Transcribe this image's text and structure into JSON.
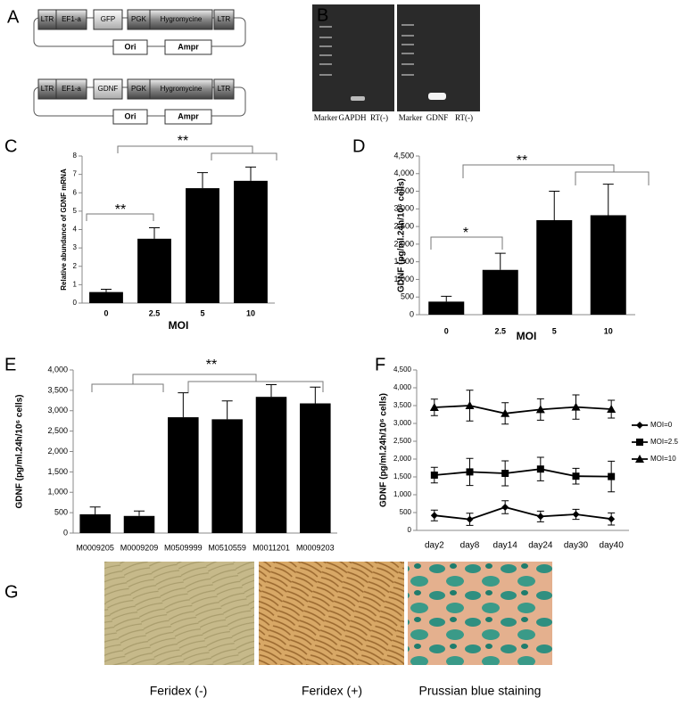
{
  "panel_labels": [
    "A",
    "B",
    "C",
    "D",
    "E",
    "F",
    "G"
  ],
  "diagram": {
    "constructs": [
      {
        "boxes": [
          "LTR",
          "EF1-a",
          "GFP",
          "PGK",
          "Hygromycine",
          "LTR"
        ],
        "backbone": [
          "Ori",
          "Ampr"
        ]
      },
      {
        "boxes": [
          "LTR",
          "EF1-a",
          "GDNF",
          "PGK",
          "Hygromycine",
          "LTR"
        ],
        "backbone": [
          "Ori",
          "Ampr"
        ]
      }
    ]
  },
  "gel": {
    "lanes": [
      "Marker",
      "GAPDH",
      "RT(-)",
      "Marker",
      "GDNF",
      "RT(-)"
    ]
  },
  "chart_data": [
    {
      "type": "bar",
      "ylabel": "Relative abundance of GDNF mRNA",
      "xlabel": "MOI",
      "categories": [
        "0",
        "2.5",
        "5",
        "10"
      ],
      "values": [
        0.6,
        3.5,
        6.25,
        6.65
      ],
      "errors": [
        0.15,
        0.6,
        0.85,
        0.75
      ],
      "color": "#000000",
      "ylim": [
        0,
        8
      ],
      "yticks": [
        0,
        1,
        2,
        3,
        4,
        5,
        6,
        7,
        8
      ],
      "annotations": [
        "**",
        "**"
      ]
    },
    {
      "type": "bar",
      "ylabel": "GDNF (pg/ml.24h/10⁶ cells)",
      "xlabel": "MOI",
      "categories": [
        "0",
        "2.5",
        "5",
        "10"
      ],
      "values": [
        370,
        1270,
        2680,
        2820
      ],
      "errors": [
        150,
        470,
        820,
        880
      ],
      "color": "#000000",
      "ylim": [
        0,
        4500
      ],
      "yticks": [
        0,
        500,
        {
          "value": 1000,
          "label": "1,000"
        },
        {
          "value": 1500,
          "label": "1,500"
        },
        {
          "value": 2000,
          "label": "2,000"
        },
        {
          "value": 2500,
          "label": "2,500"
        },
        {
          "value": 3000,
          "label": "3,000"
        },
        {
          "value": 3500,
          "label": "3,500"
        },
        {
          "value": 4000,
          "label": "4,000"
        },
        {
          "value": 4500,
          "label": "4,500"
        }
      ],
      "annotations": [
        "*",
        "**"
      ]
    },
    {
      "type": "bar",
      "ylabel": "GDNF (pg/ml.24h/10⁶ cells)",
      "categories": [
        "M0009205",
        "M0009209",
        "M0509999",
        "M0510559",
        "M0011201",
        "M0009203"
      ],
      "values": [
        460,
        420,
        2840,
        2790,
        3340,
        3180
      ],
      "errors": [
        180,
        120,
        600,
        450,
        300,
        400
      ],
      "color": "#000000",
      "ylim": [
        0,
        4000
      ],
      "yticks": [
        0,
        500,
        {
          "value": 1000,
          "label": "1,000"
        },
        {
          "value": 1500,
          "label": "1,500"
        },
        {
          "value": 2000,
          "label": "2,000"
        },
        {
          "value": 2500,
          "label": "2,500"
        },
        {
          "value": 3000,
          "label": "3,000"
        },
        {
          "value": 3500,
          "label": "3,500"
        },
        {
          "value": 4000,
          "label": "4,000"
        }
      ],
      "annotations": [
        "**"
      ]
    },
    {
      "type": "line",
      "ylabel": "GDNF (pg/ml.24h/10⁶ cells)",
      "categories": [
        "day2",
        "day8",
        "day14",
        "day24",
        "day30",
        "day40"
      ],
      "series": [
        {
          "name": "MOI=0",
          "color": "#000000",
          "marker": "diamond",
          "values": [
            420,
            310,
            650,
            390,
            450,
            320
          ],
          "errors": [
            150,
            170,
            180,
            150,
            140,
            170
          ]
        },
        {
          "name": "MOI=2.5",
          "color": "#000000",
          "marker": "square",
          "values": [
            1550,
            1640,
            1600,
            1720,
            1520,
            1510
          ],
          "errors": [
            220,
            380,
            350,
            330,
            220,
            430
          ]
        },
        {
          "name": "MOI=10",
          "color": "#000000",
          "marker": "triangle",
          "values": [
            3450,
            3500,
            3280,
            3390,
            3460,
            3400
          ],
          "errors": [
            230,
            430,
            300,
            300,
            340,
            250
          ]
        }
      ],
      "ylim": [
        0,
        4500
      ],
      "yticks": [
        0,
        500,
        {
          "value": 1000,
          "label": "1,000"
        },
        {
          "value": 1500,
          "label": "1,500"
        },
        {
          "value": 2000,
          "label": "2,000"
        },
        {
          "value": 2500,
          "label": "2,500"
        },
        {
          "value": 3000,
          "label": "3,000"
        },
        {
          "value": 3500,
          "label": "3,500"
        },
        {
          "value": 4000,
          "label": "4,000"
        },
        {
          "value": 4500,
          "label": "4,500"
        }
      ],
      "legend": "right"
    }
  ],
  "images": {
    "captions": [
      "Feridex (-)",
      "Feridex (+)",
      "Prussian blue staining"
    ]
  }
}
